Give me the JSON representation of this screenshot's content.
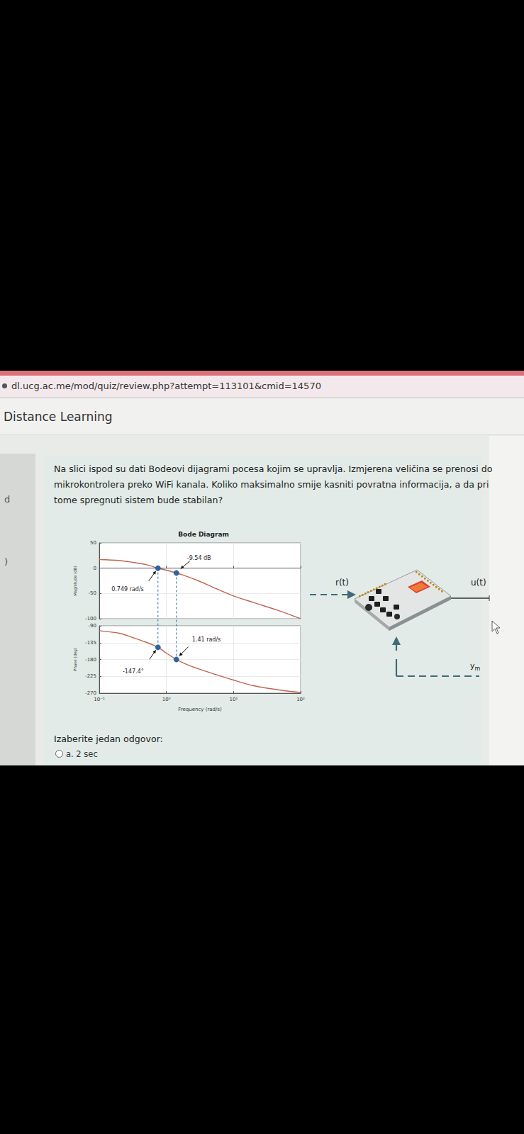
{
  "browser": {
    "url": "dl.ucg.ac.me/mod/quiz/review.php?attempt=113101&cmid=14570"
  },
  "header": {
    "title": "Distance Learning"
  },
  "sidebar": {
    "fragments": [
      "d",
      ")"
    ]
  },
  "question": {
    "lines": [
      "Na slici ispod su dati Bodeovi dijagrami pocesa kojim se upravlja. Izmjerena veličina se prenosi do",
      "mikrokontrolera preko WiFi kanala. Koliko maksimalno smije kasniti povratna informacija, a da pri",
      "tome spregnuti sistem bude stabilan?"
    ]
  },
  "chart_data": [
    {
      "type": "line",
      "title": "Bode Diagram",
      "y_label": "Magnitude (dB)",
      "x": [
        0.1,
        0.2,
        0.3,
        0.5,
        0.749,
        1,
        1.41,
        2,
        3,
        5,
        10,
        20,
        50,
        100
      ],
      "values": [
        17,
        15,
        12,
        7,
        0,
        -4,
        -9.54,
        -16,
        -25,
        -38,
        -55,
        -68,
        -85,
        -100
      ],
      "color": "#c1644f",
      "log": "x",
      "grid": true,
      "tick_labels": "y",
      "xlim": [
        0.1,
        100
      ],
      "xticks": [
        {
          "value": 0.1,
          "label": "10⁻¹"
        },
        {
          "value": 1,
          "label": "10⁰"
        },
        {
          "value": 10,
          "label": "10¹"
        },
        {
          "value": 100,
          "label": "10²"
        }
      ],
      "ylim": [
        -100,
        50
      ],
      "yticks": [
        -100,
        -50,
        0,
        50
      ],
      "annotations": [
        {
          "x": 0.749,
          "y": 0,
          "text": "0.749 rad/s",
          "color": "#2b64a8"
        },
        {
          "x": 1.41,
          "y": -9.54,
          "text": "-9.54 dB",
          "color": "#2b64a8"
        }
      ]
    },
    {
      "type": "line",
      "y_label": "Phase (deg)",
      "x_label": "Frequency (rad/s)",
      "x": [
        0.1,
        0.2,
        0.3,
        0.5,
        0.749,
        1,
        1.41,
        2,
        3,
        5,
        10,
        20,
        50,
        100
      ],
      "values": [
        -103,
        -110,
        -120,
        -134,
        -147.4,
        -163,
        -180,
        -193,
        -205,
        -218,
        -235,
        -250,
        -262,
        -268
      ],
      "color": "#c1644f",
      "log": "x",
      "grid": true,
      "xlim": [
        0.1,
        100
      ],
      "xticks": [
        {
          "value": 0.1,
          "label": "10⁻¹"
        },
        {
          "value": 1,
          "label": "10⁰"
        },
        {
          "value": 10,
          "label": "10¹"
        },
        {
          "value": 100,
          "label": "10²"
        }
      ],
      "ylim": [
        -270,
        -90
      ],
      "yticks": [
        -270,
        -225,
        -180,
        -135,
        -90
      ],
      "annotations": [
        {
          "x": 0.749,
          "y": -147.4,
          "text": "-147.4°",
          "color": "#2b64a8"
        },
        {
          "x": 1.41,
          "y": -180,
          "text": "1.41 rad/s",
          "color": "#2b64a8"
        }
      ]
    }
  ],
  "diagram": {
    "input": "r(t)",
    "output": "u(t)",
    "feedback": {
      "base": "y",
      "subscript": "m"
    }
  },
  "answers": {
    "prompt": "Izaberite jedan odgovor:",
    "options": [
      "a. 2 sec"
    ]
  }
}
